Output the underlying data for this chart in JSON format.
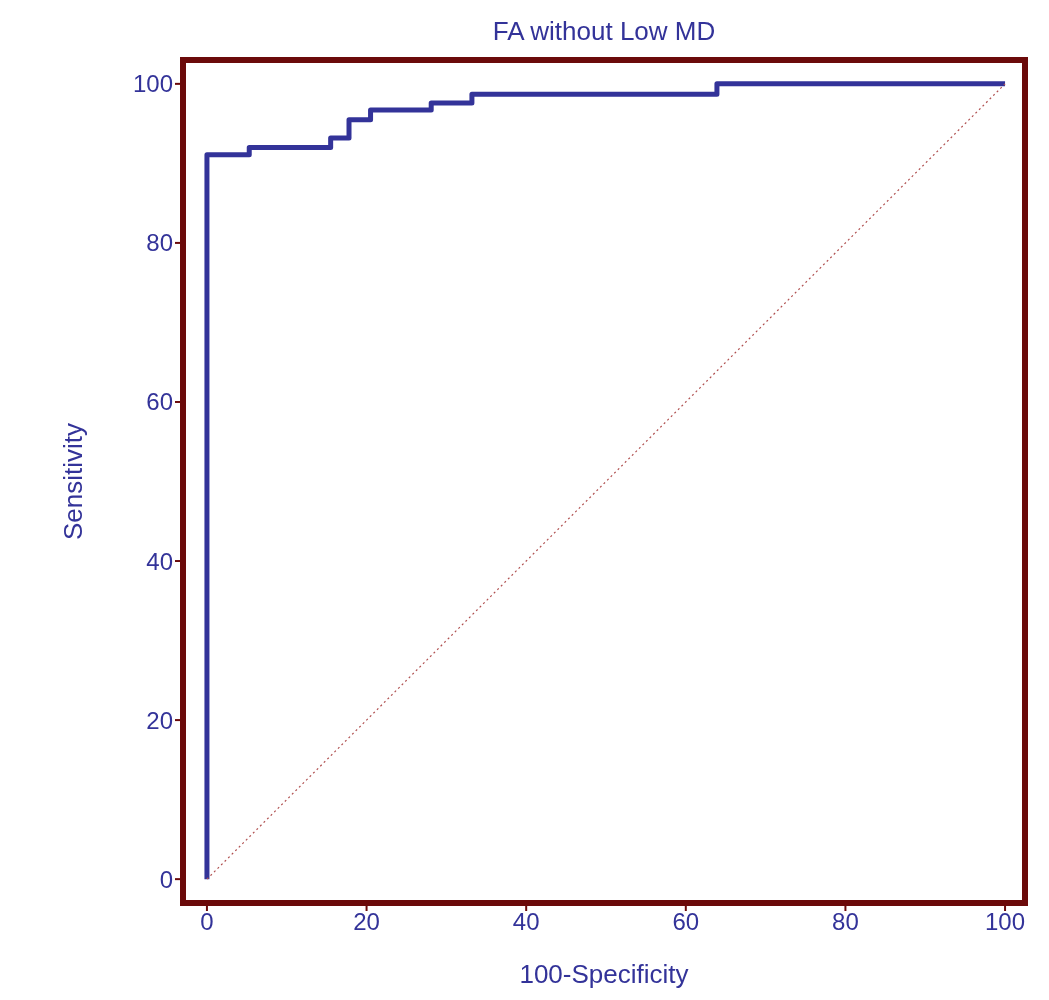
{
  "chart_data": {
    "type": "step",
    "title": "FA without Low MD",
    "xlabel": "100-Specificity",
    "ylabel": "Sensitivity",
    "xlim": [
      -3,
      102.5
    ],
    "ylim": [
      -3,
      103
    ],
    "xticks": [
      0,
      20,
      40,
      60,
      80,
      100
    ],
    "yticks": [
      0,
      20,
      40,
      60,
      80,
      100
    ],
    "grid": false,
    "legend": false,
    "series": [
      {
        "color": "#333399",
        "line_style": "solid",
        "x": [
          0,
          0,
          5.3,
          15.5,
          17.8,
          20.5,
          28.1,
          33.2,
          63.9,
          100
        ],
        "values": [
          0,
          91.1,
          92.0,
          93.2,
          95.5,
          96.7,
          97.6,
          98.7,
          100,
          100
        ]
      },
      {
        "type": "line",
        "color": "#b05050",
        "line_style": "dotted",
        "x": [
          0,
          100
        ],
        "values": [
          0,
          100
        ]
      }
    ]
  }
}
